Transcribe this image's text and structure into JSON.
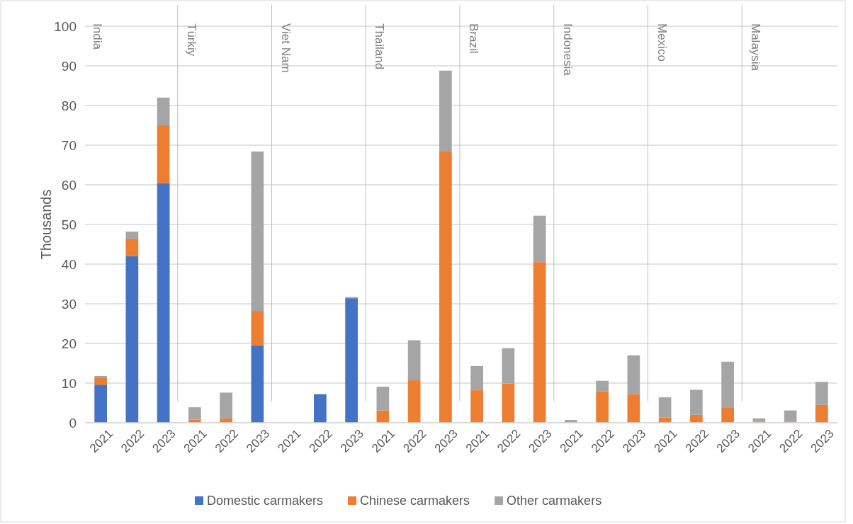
{
  "chart_data": {
    "type": "bar",
    "stacked": true,
    "ylabel": "Thousands",
    "categories": [
      "2021",
      "2022",
      "2023",
      "2021",
      "2022",
      "2023",
      "2021",
      "2022",
      "2023",
      "2021",
      "2022",
      "2023",
      "2021",
      "2022",
      "2023",
      "2021",
      "2022",
      "2023",
      "2021",
      "2022",
      "2023",
      "2021",
      "2022",
      "2023"
    ],
    "annotations": [
      "India",
      "Türkiy",
      "Viet Nam",
      "Thailand",
      "Brazil",
      "Indonesia",
      "Mexico",
      "Malaysia"
    ],
    "series": [
      {
        "name": "Domestic carmakers",
        "color": "#4472c4",
        "values": [
          9.6,
          42,
          60.4,
          0,
          0,
          19.5,
          0,
          7.2,
          31.4,
          0,
          0,
          0,
          0,
          0,
          0,
          0,
          0,
          0,
          0,
          0,
          0,
          0,
          0,
          0
        ]
      },
      {
        "name": "Chinese carmakers",
        "color": "#ed7d31",
        "values": [
          1.8,
          4.4,
          14.6,
          0.8,
          1.1,
          8.7,
          0,
          0,
          0,
          3.1,
          10.7,
          68.4,
          8.2,
          9.9,
          40.5,
          0,
          7.9,
          7.2,
          1.3,
          2.0,
          3.9,
          0.3,
          0.3,
          4.5
        ]
      },
      {
        "name": "Other carmakers",
        "color": "#a5a5a5",
        "values": [
          0.4,
          1.8,
          7,
          3.1,
          6.5,
          40.2,
          0,
          0,
          0.3,
          6,
          10.1,
          20.4,
          6.1,
          8.9,
          11.7,
          0.7,
          2.7,
          9.8,
          5.1,
          6.3,
          11.5,
          0.8,
          2.8,
          5.8
        ]
      }
    ],
    "ylim": [
      0,
      100
    ],
    "yticks": [
      0,
      10,
      20,
      30,
      40,
      50,
      60,
      70,
      80,
      90,
      100
    ],
    "grid": "y",
    "legend": "bottom"
  }
}
